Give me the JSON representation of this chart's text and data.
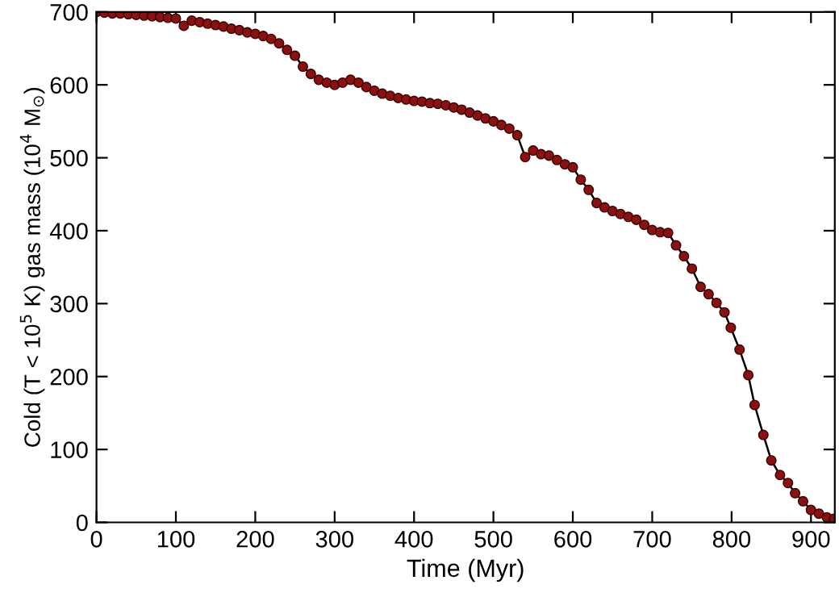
{
  "chart_data": {
    "type": "line",
    "xlabel": "Time (Myr)",
    "ylabel": "Cold (T < 10$^{5}$ K) gas mass (10$^{4}$ M$_{⊙}$)",
    "x": [
      0,
      10,
      20,
      30,
      40,
      50,
      60,
      70,
      80,
      90,
      100,
      110,
      120,
      130,
      140,
      150,
      160,
      170,
      180,
      190,
      200,
      210,
      220,
      230,
      240,
      250,
      260,
      270,
      280,
      290,
      300,
      310,
      320,
      330,
      340,
      350,
      360,
      370,
      380,
      390,
      400,
      410,
      420,
      430,
      440,
      450,
      460,
      470,
      480,
      490,
      500,
      510,
      520,
      530,
      540,
      550,
      560,
      570,
      580,
      590,
      600,
      610,
      620,
      630,
      640,
      650,
      660,
      670,
      680,
      690,
      700,
      710,
      720,
      730,
      740,
      750,
      761,
      771,
      781,
      791,
      799,
      810,
      821,
      829,
      840,
      850,
      861,
      871,
      880,
      890,
      900,
      910,
      920,
      929
    ],
    "series": [
      {
        "color": "#8b1010",
        "values": [
          700,
          699,
          698,
          698,
          697,
          696,
          695,
          694,
          693,
          692,
          691,
          681,
          688,
          686,
          684,
          682,
          680,
          677,
          675,
          672,
          670,
          667,
          663,
          657,
          648,
          640,
          625,
          615,
          607,
          603,
          600,
          603,
          607,
          603,
          597,
          592,
          588,
          585,
          582,
          580,
          578,
          577,
          575,
          574,
          572,
          569,
          566,
          562,
          558,
          554,
          550,
          545,
          540,
          531,
          501,
          510,
          505,
          503,
          497,
          491,
          487,
          470,
          456,
          438,
          432,
          427,
          423,
          419,
          415,
          408,
          401,
          398,
          397,
          380,
          365,
          348,
          323,
          313,
          301,
          288,
          267,
          237,
          202,
          161,
          120,
          85,
          65,
          54,
          40,
          29,
          17,
          12,
          7,
          5
        ]
      }
    ],
    "xlim": [
      0,
      930
    ],
    "ylim": [
      0,
      700
    ],
    "xticks": [
      0,
      100,
      200,
      300,
      400,
      500,
      600,
      700,
      800,
      900
    ],
    "yticks": [
      0,
      100,
      200,
      300,
      400,
      500,
      600,
      700
    ],
    "marker": "circle",
    "line_style": "solid",
    "grid": false,
    "legend": false
  }
}
